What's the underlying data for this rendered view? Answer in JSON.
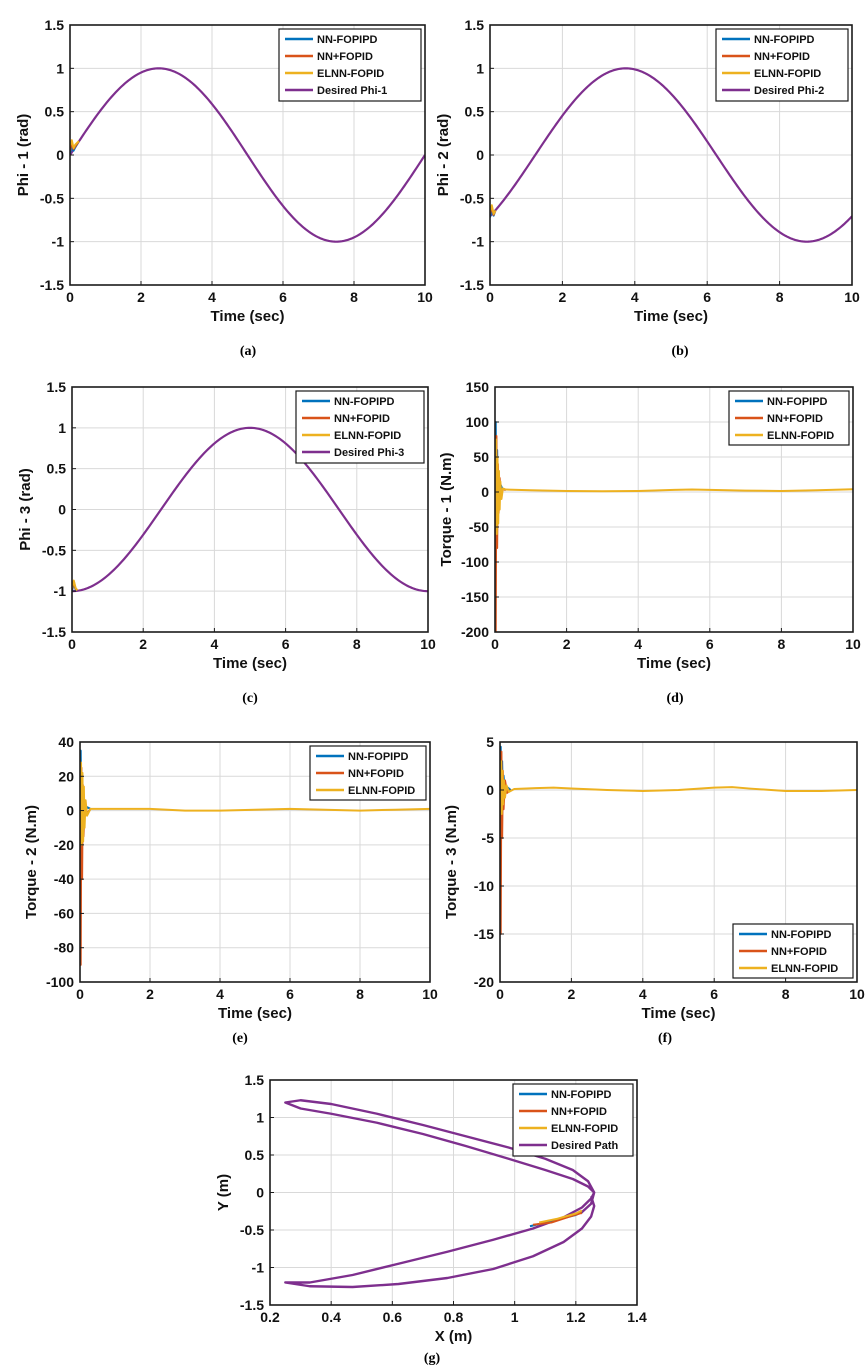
{
  "colors": {
    "nn_fopipd": "#0072BD",
    "nn_fopid": "#D95319",
    "elnn_fopid": "#EDB120",
    "desired": "#7E2F8E",
    "grid": "#d9d9d9"
  },
  "chart_data": [
    {
      "id": "a",
      "type": "line",
      "caption": "(a)",
      "xlabel": "Time (sec)",
      "ylabel": "Phi - 1  (rad)",
      "xlim": [
        0,
        10
      ],
      "ylim": [
        -1.5,
        1.5
      ],
      "xticks": [
        0,
        2,
        4,
        6,
        8,
        10
      ],
      "yticks": [
        -1.5,
        -1,
        -0.5,
        0,
        0.5,
        1,
        1.5
      ],
      "ytick_labels": [
        "-1.5",
        "-1",
        "-0.5",
        "0",
        "0.5",
        "1",
        "1.5"
      ],
      "legend": [
        "NN-FOPIPD",
        "NN+FOPID",
        "ELNN-FOPID",
        "Desired Phi-1"
      ],
      "legend_position": "top-right",
      "desired": {
        "name": "Desired Phi-1",
        "function": "sin",
        "amplitude": 1,
        "period": 10,
        "phase_deg": 0
      },
      "series": [
        {
          "name": "NN-FOPIPD",
          "x": [
            0,
            0.05,
            0.1,
            0.15,
            0.25
          ],
          "y": [
            0.02,
            0.1,
            0.05,
            0.09,
            0.16
          ]
        },
        {
          "name": "NN+FOPID",
          "x": [
            0,
            0.05,
            0.1,
            0.15,
            0.25
          ],
          "y": [
            0.05,
            0.14,
            0.07,
            0.1,
            0.16
          ]
        },
        {
          "name": "ELNN-FOPID",
          "x": [
            0,
            0.05,
            0.1,
            0.15,
            0.25
          ],
          "y": [
            0.1,
            0.17,
            0.08,
            0.12,
            0.16
          ]
        }
      ]
    },
    {
      "id": "b",
      "type": "line",
      "caption": "(b)",
      "xlabel": "Time (sec)",
      "ylabel": "Phi - 2  (rad)",
      "xlim": [
        0,
        10
      ],
      "ylim": [
        -1.5,
        1.5
      ],
      "xticks": [
        0,
        2,
        4,
        6,
        8,
        10
      ],
      "yticks": [
        -1.5,
        -1,
        -0.5,
        0,
        0.5,
        1,
        1.5
      ],
      "ytick_labels": [
        "-1.5",
        "-1",
        "-0.5",
        "0",
        "0.5",
        "1",
        "1.5"
      ],
      "legend": [
        "NN-FOPIPD",
        "NN+FOPID",
        "ELNN-FOPID",
        "Desired Phi-2"
      ],
      "legend_position": "top-right",
      "desired": {
        "name": "Desired Phi-2",
        "function": "sin",
        "amplitude": 1,
        "period": 10,
        "phase_deg": -45
      },
      "series": [
        {
          "name": "NN-FOPIPD",
          "x": [
            0,
            0.05,
            0.1,
            0.15
          ],
          "y": [
            -0.72,
            -0.62,
            -0.7,
            -0.64
          ]
        },
        {
          "name": "NN+FOPID",
          "x": [
            0,
            0.05,
            0.1,
            0.15
          ],
          "y": [
            -0.68,
            -0.6,
            -0.69,
            -0.64
          ]
        },
        {
          "name": "ELNN-FOPID",
          "x": [
            0,
            0.05,
            0.1,
            0.15
          ],
          "y": [
            -0.65,
            -0.58,
            -0.68,
            -0.64
          ]
        }
      ]
    },
    {
      "id": "c",
      "type": "line",
      "caption": "(c)",
      "xlabel": "Time (sec)",
      "ylabel": "Phi - 3  (rad)",
      "xlim": [
        0,
        10
      ],
      "ylim": [
        -1.5,
        1.5
      ],
      "xticks": [
        0,
        2,
        4,
        6,
        8,
        10
      ],
      "yticks": [
        -1.5,
        -1,
        -0.5,
        0,
        0.5,
        1,
        1.5
      ],
      "ytick_labels": [
        "-1.5",
        "-1",
        "-0.5",
        "0",
        "0.5",
        "1",
        "1.5"
      ],
      "legend": [
        "NN-FOPIPD",
        "NN+FOPID",
        "ELNN-FOPID",
        "Desired Phi-3"
      ],
      "legend_position": "top-right",
      "desired": {
        "name": "Desired Phi-3",
        "function": "sin",
        "amplitude": 1,
        "period": 10,
        "phase_deg": -90
      },
      "series": [
        {
          "name": "NN-FOPIPD",
          "x": [
            0,
            0.05,
            0.1,
            0.15
          ],
          "y": [
            -1.0,
            -0.9,
            -0.98,
            -0.99
          ]
        },
        {
          "name": "NN+FOPID",
          "x": [
            0,
            0.05,
            0.1,
            0.15
          ],
          "y": [
            -0.98,
            -0.88,
            -0.97,
            -0.99
          ]
        },
        {
          "name": "ELNN-FOPID",
          "x": [
            0,
            0.05,
            0.1,
            0.15
          ],
          "y": [
            -0.96,
            -0.87,
            -0.96,
            -0.99
          ]
        }
      ]
    },
    {
      "id": "d",
      "type": "line",
      "caption": "(d)",
      "xlabel": "Time (sec)",
      "ylabel": "Torque - 1  (N.m)",
      "xlim": [
        0,
        10
      ],
      "ylim": [
        -200,
        150
      ],
      "xticks": [
        0,
        2,
        4,
        6,
        8,
        10
      ],
      "yticks": [
        -200,
        -150,
        -100,
        -50,
        0,
        50,
        100,
        150
      ],
      "ytick_labels": [
        "-200",
        "-150",
        "-100",
        "-50",
        "0",
        "50",
        "100",
        "150"
      ],
      "legend": [
        "NN-FOPIPD",
        "NN+FOPID",
        "ELNN-FOPID"
      ],
      "legend_position": "top-right",
      "series": [
        {
          "name": "NN-FOPIPD",
          "x": [
            0,
            0.02,
            0.04,
            0.06,
            0.08,
            0.1,
            0.13,
            0.16,
            0.2,
            0.3
          ],
          "y": [
            0,
            100,
            -40,
            60,
            -20,
            30,
            -10,
            10,
            5,
            3
          ]
        },
        {
          "name": "NN+FOPID",
          "x": [
            0,
            0.02,
            0.04,
            0.06,
            0.08,
            0.1,
            0.13,
            0.16,
            0.2,
            0.3
          ],
          "y": [
            0,
            -200,
            80,
            -80,
            40,
            -30,
            20,
            -5,
            4,
            3
          ]
        },
        {
          "name": "ELNN-FOPID",
          "x": [
            0,
            0.03,
            0.05,
            0.07,
            0.09,
            0.11,
            0.13,
            0.15,
            0.18,
            0.22,
            0.3,
            1,
            2,
            3,
            4,
            5,
            5.5,
            6,
            7,
            8,
            9,
            10
          ],
          "y": [
            0,
            75,
            -60,
            50,
            -45,
            30,
            -25,
            15,
            -10,
            5,
            3.5,
            2.5,
            1.5,
            1,
            1.5,
            3,
            3.5,
            3,
            2,
            1.5,
            2.5,
            4
          ]
        }
      ]
    },
    {
      "id": "e",
      "type": "line",
      "caption": "(e)",
      "xlabel": "Time (sec)",
      "ylabel": "Torque - 2  (N.m)",
      "xlim": [
        0,
        10
      ],
      "ylim": [
        -100,
        40
      ],
      "xticks": [
        0,
        2,
        4,
        6,
        8,
        10
      ],
      "yticks": [
        -100,
        -80,
        -60,
        -40,
        -20,
        0,
        20,
        40
      ],
      "ytick_labels": [
        "-100",
        "-80",
        "-60",
        "-40",
        "-20",
        "0",
        "20",
        "40"
      ],
      "legend": [
        "NN-FOPIPD",
        "NN+FOPID",
        "ELNN-FOPID"
      ],
      "legend_position": "top-right",
      "series": [
        {
          "name": "NN-FOPIPD",
          "x": [
            0,
            0.02,
            0.04,
            0.06,
            0.08,
            0.1,
            0.14,
            0.2,
            0.3
          ],
          "y": [
            0,
            35,
            -15,
            20,
            -8,
            10,
            -3,
            2,
            1
          ]
        },
        {
          "name": "NN+FOPID",
          "x": [
            0,
            0.02,
            0.04,
            0.06,
            0.08,
            0.1,
            0.14,
            0.2,
            0.3
          ],
          "y": [
            0,
            -90,
            25,
            -40,
            15,
            -15,
            6,
            -2,
            1
          ]
        },
        {
          "name": "ELNN-FOPID",
          "x": [
            0,
            0.03,
            0.05,
            0.07,
            0.09,
            0.11,
            0.13,
            0.16,
            0.2,
            0.3,
            1,
            2,
            3,
            4,
            5,
            6,
            7,
            8,
            9,
            10
          ],
          "y": [
            0,
            28,
            -20,
            22,
            -18,
            14,
            -10,
            6,
            -3,
            1,
            1,
            1,
            0,
            0,
            0.5,
            1,
            0.5,
            0,
            0.5,
            1
          ]
        }
      ]
    },
    {
      "id": "f",
      "type": "line",
      "caption": "(f)",
      "xlabel": "Time (sec)",
      "ylabel": "Torque - 3  (N.m)",
      "xlim": [
        0,
        10
      ],
      "ylim": [
        -20,
        5
      ],
      "xticks": [
        0,
        2,
        4,
        6,
        8,
        10
      ],
      "yticks": [
        -20,
        -15,
        -10,
        -5,
        0,
        5
      ],
      "ytick_labels": [
        "-20",
        "-15",
        "-10",
        "-5",
        "0",
        "5"
      ],
      "legend": [
        "NN-FOPIPD",
        "NN+FOPID",
        "ELNN-FOPID"
      ],
      "legend_position": "bottom-right",
      "series": [
        {
          "name": "NN-FOPIPD",
          "x": [
            0,
            0.02,
            0.04,
            0.06,
            0.08,
            0.1,
            0.14,
            0.2,
            0.3
          ],
          "y": [
            0,
            4.5,
            -2,
            3,
            -1,
            1.5,
            -0.5,
            0.3,
            0
          ]
        },
        {
          "name": "NN+FOPID",
          "x": [
            0,
            0.02,
            0.04,
            0.06,
            0.08,
            0.1,
            0.14,
            0.2,
            0.3
          ],
          "y": [
            0,
            -15,
            4,
            -5,
            2,
            -2,
            1,
            -0.3,
            0
          ]
        },
        {
          "name": "ELNN-FOPID",
          "x": [
            0,
            0.03,
            0.05,
            0.07,
            0.09,
            0.11,
            0.14,
            0.18,
            0.25,
            0.4,
            1,
            1.5,
            2,
            3,
            4,
            5,
            6,
            6.5,
            7,
            8,
            9,
            10
          ],
          "y": [
            0,
            3,
            -2.5,
            2,
            -1.5,
            1,
            -0.8,
            0.5,
            -0.2,
            0.1,
            0.2,
            0.25,
            0.15,
            0,
            -0.1,
            0,
            0.25,
            0.3,
            0.15,
            -0.1,
            -0.1,
            0
          ]
        }
      ]
    },
    {
      "id": "g",
      "type": "line",
      "caption": "(g)",
      "xlabel": "X (m)",
      "ylabel": "Y (m)",
      "xlim": [
        0.2,
        1.4
      ],
      "ylim": [
        -1.5,
        1.5
      ],
      "xticks": [
        0.2,
        0.4,
        0.6,
        0.8,
        1.0,
        1.2,
        1.4
      ],
      "xtick_labels": [
        "0.2",
        "0.4",
        "0.6",
        "0.8",
        "1",
        "1.2",
        "1.4"
      ],
      "yticks": [
        -1.5,
        -1,
        -0.5,
        0,
        0.5,
        1,
        1.5
      ],
      "ytick_labels": [
        "-1.5",
        "-1",
        "-0.5",
        "0",
        "0.5",
        "1",
        "1.5"
      ],
      "legend": [
        "NN-FOPIPD",
        "NN+FOPID",
        "ELNN-FOPID",
        "Desired Path"
      ],
      "legend_position": "top-right",
      "desired_path": {
        "name": "Desired Path",
        "x": [
          1.215,
          1.25,
          1.26,
          1.24,
          1.19,
          1.1,
          0.98,
          0.84,
          0.7,
          0.55,
          0.4,
          0.3,
          0.25,
          0.3,
          0.4,
          0.55,
          0.7,
          0.84,
          0.98,
          1.1,
          1.19,
          1.24,
          1.26,
          1.25,
          1.22,
          1.16,
          1.06,
          0.93,
          0.78,
          0.62,
          0.47,
          0.33,
          0.25,
          0.33,
          0.47,
          0.62,
          0.78,
          0.93,
          1.06,
          1.16,
          1.22,
          1.25,
          1.26,
          1.25
        ],
        "y": [
          -0.28,
          -0.15,
          0.0,
          0.15,
          0.3,
          0.45,
          0.6,
          0.75,
          0.9,
          1.05,
          1.18,
          1.23,
          1.2,
          1.12,
          1.05,
          0.93,
          0.78,
          0.62,
          0.45,
          0.3,
          0.18,
          0.08,
          0.0,
          -0.08,
          -0.2,
          -0.33,
          -0.48,
          -0.63,
          -0.79,
          -0.95,
          -1.1,
          -1.2,
          -1.2,
          -1.25,
          -1.26,
          -1.22,
          -1.14,
          -1.02,
          -0.85,
          -0.66,
          -0.48,
          -0.32,
          -0.18,
          -0.05
        ]
      },
      "series": [
        {
          "name": "NN-FOPIPD",
          "x": [
            1.05,
            1.12,
            1.2,
            1.22
          ],
          "y": [
            -0.45,
            -0.38,
            -0.3,
            -0.26
          ]
        },
        {
          "name": "NN+FOPID",
          "x": [
            1.06,
            1.12,
            1.18,
            1.22
          ],
          "y": [
            -0.43,
            -0.4,
            -0.32,
            -0.27
          ]
        },
        {
          "name": "ELNN-FOPID",
          "x": [
            1.08,
            1.14,
            1.2,
            1.22
          ],
          "y": [
            -0.4,
            -0.35,
            -0.28,
            -0.24
          ]
        }
      ]
    }
  ]
}
